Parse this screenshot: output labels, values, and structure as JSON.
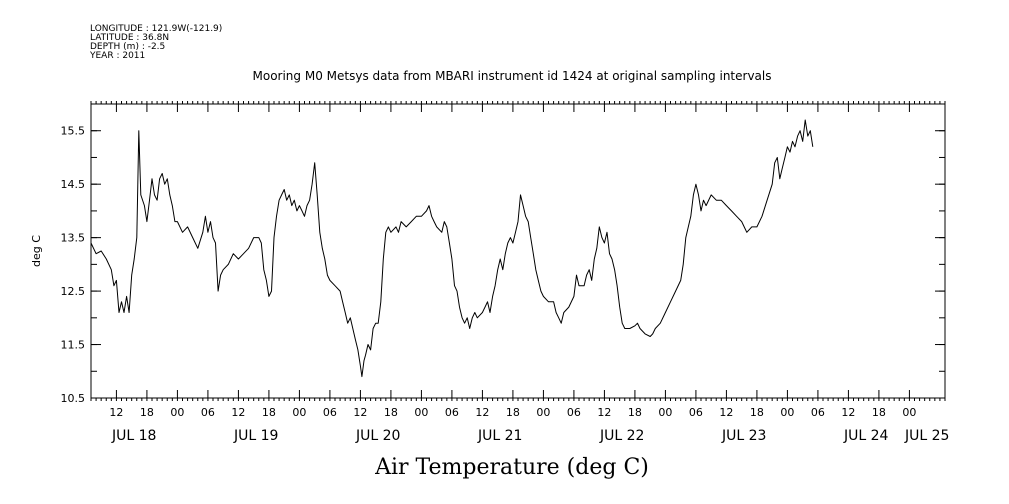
{
  "header": {
    "lines": [
      "LONGITUDE : 121.9W(-121.9)",
      "LATITUDE : 36.8N",
      "DEPTH (m) : -2.5",
      "YEAR : 2011"
    ]
  },
  "chart_data": {
    "type": "line",
    "title": "Mooring M0 Metsys data from MBARI instrument id 1424 at original sampling intervals",
    "xlabel": "Air Temperature (deg C)",
    "ylabel": "deg C",
    "ylim": [
      10.5,
      16.0
    ],
    "xlim": [
      7.0,
      175.0
    ],
    "x_units": "hours since 2011-07-17 00:00",
    "y_ticks": [
      10.5,
      11.5,
      12.5,
      13.5,
      14.5,
      15.5
    ],
    "x_hour_ticks": [
      {
        "x": 12,
        "label": "12"
      },
      {
        "x": 18,
        "label": "18"
      },
      {
        "x": 24,
        "label": "00"
      },
      {
        "x": 30,
        "label": "06"
      },
      {
        "x": 36,
        "label": "12"
      },
      {
        "x": 42,
        "label": "18"
      },
      {
        "x": 48,
        "label": "00"
      },
      {
        "x": 54,
        "label": "06"
      },
      {
        "x": 60,
        "label": "12"
      },
      {
        "x": 66,
        "label": "18"
      },
      {
        "x": 72,
        "label": "00"
      },
      {
        "x": 78,
        "label": "06"
      },
      {
        "x": 84,
        "label": "12"
      },
      {
        "x": 90,
        "label": "18"
      },
      {
        "x": 96,
        "label": "00"
      },
      {
        "x": 102,
        "label": "06"
      },
      {
        "x": 108,
        "label": "12"
      },
      {
        "x": 114,
        "label": "18"
      },
      {
        "x": 120,
        "label": "00"
      },
      {
        "x": 126,
        "label": "06"
      },
      {
        "x": 132,
        "label": "12"
      },
      {
        "x": 138,
        "label": "18"
      },
      {
        "x": 144,
        "label": "00"
      },
      {
        "x": 150,
        "label": "06"
      },
      {
        "x": 156,
        "label": "12"
      },
      {
        "x": 162,
        "label": "18"
      },
      {
        "x": 168,
        "label": "00"
      }
    ],
    "x_day_labels": [
      {
        "x": 15.5,
        "label": "JUL 18"
      },
      {
        "x": 39.5,
        "label": "JUL 19"
      },
      {
        "x": 63.5,
        "label": "JUL 20"
      },
      {
        "x": 87.5,
        "label": "JUL 21"
      },
      {
        "x": 111.5,
        "label": "JUL 22"
      },
      {
        "x": 135.5,
        "label": "JUL 23"
      },
      {
        "x": 159.5,
        "label": "JUL 24"
      },
      {
        "x": 171.5,
        "label": "JUL 25"
      }
    ],
    "grid": false,
    "series": [
      {
        "color": "#000000",
        "points": [
          [
            7.0,
            13.4
          ],
          [
            8.0,
            13.2
          ],
          [
            9.0,
            13.25
          ],
          [
            10.0,
            13.1
          ],
          [
            11.0,
            12.9
          ],
          [
            11.5,
            12.6
          ],
          [
            12.0,
            12.7
          ],
          [
            12.5,
            12.1
          ],
          [
            13.0,
            12.3
          ],
          [
            13.5,
            12.1
          ],
          [
            14.0,
            12.4
          ],
          [
            14.5,
            12.1
          ],
          [
            15.0,
            12.8
          ],
          [
            15.5,
            13.1
          ],
          [
            16.0,
            13.5
          ],
          [
            16.4,
            15.5
          ],
          [
            16.8,
            14.3
          ],
          [
            17.5,
            14.1
          ],
          [
            18.0,
            13.8
          ],
          [
            18.5,
            14.2
          ],
          [
            19.0,
            14.6
          ],
          [
            19.5,
            14.3
          ],
          [
            20.0,
            14.2
          ],
          [
            20.5,
            14.6
          ],
          [
            21.0,
            14.7
          ],
          [
            21.5,
            14.5
          ],
          [
            22.0,
            14.6
          ],
          [
            22.5,
            14.3
          ],
          [
            23.0,
            14.1
          ],
          [
            23.5,
            13.8
          ],
          [
            24.0,
            13.8
          ],
          [
            25.0,
            13.6
          ],
          [
            26.0,
            13.7
          ],
          [
            27.0,
            13.5
          ],
          [
            28.0,
            13.3
          ],
          [
            29.0,
            13.6
          ],
          [
            29.5,
            13.9
          ],
          [
            30.0,
            13.6
          ],
          [
            30.5,
            13.8
          ],
          [
            31.0,
            13.5
          ],
          [
            31.5,
            13.4
          ],
          [
            32.0,
            12.5
          ],
          [
            32.5,
            12.8
          ],
          [
            33.0,
            12.9
          ],
          [
            34.0,
            13.0
          ],
          [
            35.0,
            13.2
          ],
          [
            36.0,
            13.1
          ],
          [
            37.0,
            13.2
          ],
          [
            38.0,
            13.3
          ],
          [
            39.0,
            13.5
          ],
          [
            40.0,
            13.5
          ],
          [
            40.5,
            13.4
          ],
          [
            41.0,
            12.9
          ],
          [
            41.5,
            12.7
          ],
          [
            42.0,
            12.4
          ],
          [
            42.5,
            12.5
          ],
          [
            43.0,
            13.5
          ],
          [
            43.5,
            13.9
          ],
          [
            44.0,
            14.2
          ],
          [
            44.5,
            14.3
          ],
          [
            45.0,
            14.4
          ],
          [
            45.5,
            14.2
          ],
          [
            46.0,
            14.3
          ],
          [
            46.5,
            14.1
          ],
          [
            47.0,
            14.2
          ],
          [
            47.5,
            14.0
          ],
          [
            48.0,
            14.1
          ],
          [
            48.5,
            14.0
          ],
          [
            49.0,
            13.9
          ],
          [
            49.5,
            14.1
          ],
          [
            50.0,
            14.2
          ],
          [
            50.5,
            14.5
          ],
          [
            51.0,
            14.9
          ],
          [
            51.5,
            14.3
          ],
          [
            52.0,
            13.6
          ],
          [
            52.5,
            13.3
          ],
          [
            53.0,
            13.1
          ],
          [
            53.5,
            12.8
          ],
          [
            54.0,
            12.7
          ],
          [
            55.0,
            12.6
          ],
          [
            56.0,
            12.5
          ],
          [
            56.5,
            12.3
          ],
          [
            57.0,
            12.1
          ],
          [
            57.5,
            11.9
          ],
          [
            58.0,
            12.0
          ],
          [
            58.5,
            11.8
          ],
          [
            59.0,
            11.6
          ],
          [
            59.5,
            11.4
          ],
          [
            60.0,
            11.1
          ],
          [
            60.3,
            10.9
          ],
          [
            60.7,
            11.2
          ],
          [
            61.0,
            11.3
          ],
          [
            61.5,
            11.5
          ],
          [
            62.0,
            11.4
          ],
          [
            62.5,
            11.8
          ],
          [
            63.0,
            11.9
          ],
          [
            63.5,
            11.9
          ],
          [
            64.0,
            12.3
          ],
          [
            64.5,
            13.1
          ],
          [
            65.0,
            13.6
          ],
          [
            65.5,
            13.7
          ],
          [
            66.0,
            13.6
          ],
          [
            67.0,
            13.7
          ],
          [
            67.5,
            13.6
          ],
          [
            68.0,
            13.8
          ],
          [
            69.0,
            13.7
          ],
          [
            70.0,
            13.8
          ],
          [
            71.0,
            13.9
          ],
          [
            72.0,
            13.9
          ],
          [
            73.0,
            14.0
          ],
          [
            73.5,
            14.1
          ],
          [
            74.0,
            13.9
          ],
          [
            74.5,
            13.8
          ],
          [
            75.0,
            13.7
          ],
          [
            76.0,
            13.6
          ],
          [
            76.5,
            13.8
          ],
          [
            77.0,
            13.7
          ],
          [
            77.5,
            13.4
          ],
          [
            78.0,
            13.1
          ],
          [
            78.5,
            12.6
          ],
          [
            79.0,
            12.5
          ],
          [
            79.5,
            12.2
          ],
          [
            80.0,
            12.0
          ],
          [
            80.5,
            11.9
          ],
          [
            81.0,
            12.0
          ],
          [
            81.5,
            11.8
          ],
          [
            82.0,
            12.0
          ],
          [
            82.5,
            12.1
          ],
          [
            83.0,
            12.0
          ],
          [
            84.0,
            12.1
          ],
          [
            84.5,
            12.2
          ],
          [
            85.0,
            12.3
          ],
          [
            85.5,
            12.1
          ],
          [
            86.0,
            12.4
          ],
          [
            86.5,
            12.6
          ],
          [
            87.0,
            12.9
          ],
          [
            87.5,
            13.1
          ],
          [
            88.0,
            12.9
          ],
          [
            88.5,
            13.2
          ],
          [
            89.0,
            13.4
          ],
          [
            89.5,
            13.5
          ],
          [
            90.0,
            13.4
          ],
          [
            90.5,
            13.6
          ],
          [
            91.0,
            13.8
          ],
          [
            91.5,
            14.3
          ],
          [
            92.0,
            14.1
          ],
          [
            92.5,
            13.9
          ],
          [
            93.0,
            13.8
          ],
          [
            93.5,
            13.5
          ],
          [
            94.0,
            13.2
          ],
          [
            94.5,
            12.9
          ],
          [
            95.0,
            12.7
          ],
          [
            95.5,
            12.5
          ],
          [
            96.0,
            12.4
          ],
          [
            97.0,
            12.3
          ],
          [
            98.0,
            12.3
          ],
          [
            98.5,
            12.1
          ],
          [
            99.0,
            12.0
          ],
          [
            99.5,
            11.9
          ],
          [
            100.0,
            12.1
          ],
          [
            101.0,
            12.2
          ],
          [
            102.0,
            12.4
          ],
          [
            102.5,
            12.8
          ],
          [
            103.0,
            12.6
          ],
          [
            104.0,
            12.6
          ],
          [
            104.5,
            12.8
          ],
          [
            105.0,
            12.9
          ],
          [
            105.5,
            12.7
          ],
          [
            106.0,
            13.1
          ],
          [
            106.5,
            13.3
          ],
          [
            107.0,
            13.7
          ],
          [
            107.5,
            13.5
          ],
          [
            108.0,
            13.4
          ],
          [
            108.5,
            13.6
          ],
          [
            109.0,
            13.2
          ],
          [
            109.5,
            13.1
          ],
          [
            110.0,
            12.9
          ],
          [
            110.5,
            12.6
          ],
          [
            111.0,
            12.2
          ],
          [
            111.5,
            11.9
          ],
          [
            112.0,
            11.8
          ],
          [
            113.0,
            11.8
          ],
          [
            114.0,
            11.85
          ],
          [
            114.5,
            11.9
          ],
          [
            115.0,
            11.8
          ],
          [
            116.0,
            11.7
          ],
          [
            117.0,
            11.65
          ],
          [
            117.5,
            11.7
          ],
          [
            118.0,
            11.8
          ],
          [
            119.0,
            11.9
          ],
          [
            120.0,
            12.1
          ],
          [
            121.0,
            12.3
          ],
          [
            122.0,
            12.5
          ],
          [
            123.0,
            12.7
          ],
          [
            123.5,
            13.0
          ],
          [
            124.0,
            13.5
          ],
          [
            124.5,
            13.7
          ],
          [
            125.0,
            13.9
          ],
          [
            125.5,
            14.3
          ],
          [
            126.0,
            14.5
          ],
          [
            126.5,
            14.3
          ],
          [
            127.0,
            14.0
          ],
          [
            127.5,
            14.2
          ],
          [
            128.0,
            14.1
          ],
          [
            129.0,
            14.3
          ],
          [
            130.0,
            14.2
          ],
          [
            131.0,
            14.2
          ],
          [
            132.0,
            14.1
          ],
          [
            133.0,
            14.0
          ],
          [
            134.0,
            13.9
          ],
          [
            135.0,
            13.8
          ],
          [
            135.5,
            13.7
          ],
          [
            136.0,
            13.6
          ],
          [
            137.0,
            13.7
          ],
          [
            138.0,
            13.7
          ],
          [
            139.0,
            13.9
          ],
          [
            140.0,
            14.2
          ],
          [
            141.0,
            14.5
          ],
          [
            141.5,
            14.9
          ],
          [
            142.0,
            15.0
          ],
          [
            142.5,
            14.6
          ],
          [
            143.0,
            14.8
          ],
          [
            143.5,
            15.0
          ],
          [
            144.0,
            15.2
          ],
          [
            144.5,
            15.1
          ],
          [
            145.0,
            15.3
          ],
          [
            145.5,
            15.2
          ],
          [
            146.0,
            15.4
          ],
          [
            146.5,
            15.5
          ],
          [
            147.0,
            15.3
          ],
          [
            147.5,
            15.7
          ],
          [
            148.0,
            15.4
          ],
          [
            148.5,
            15.5
          ],
          [
            149.0,
            15.2
          ]
        ]
      }
    ]
  }
}
